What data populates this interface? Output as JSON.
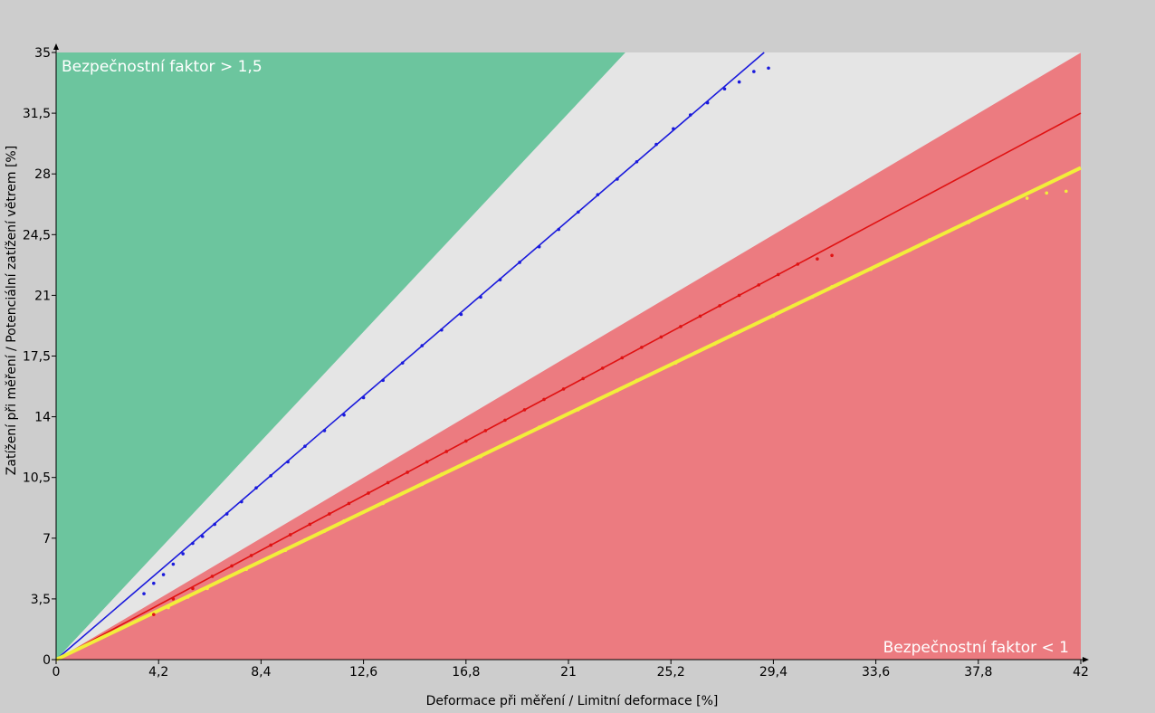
{
  "colors": {
    "background": "#cdcdcd",
    "safe_zone": "#6cc59e",
    "neutral_zone": "#e5e5e5",
    "danger_zone": "#ec7b80",
    "blue_series": "#1a1adc",
    "red_series": "#e01212",
    "yellow_series": "#f2ee3a"
  },
  "chart_data": {
    "type": "scatter",
    "xlabel": "Deformace při měření / Limitní deformace [%]",
    "ylabel": "Zatížení při měření / Potenciální zatížení větrem [%]",
    "xlim": [
      0,
      42
    ],
    "ylim": [
      0,
      35
    ],
    "x_ticks": [
      "0",
      "4,2",
      "8,4",
      "12,6",
      "16,8",
      "21",
      "25,2",
      "29,4",
      "33,6",
      "37,8",
      "42"
    ],
    "y_ticks": [
      "0",
      "3,5",
      "7",
      "10,5",
      "14",
      "17,5",
      "21",
      "24,5",
      "28",
      "31,5",
      "35"
    ],
    "grid": false,
    "zones": [
      {
        "label": "Bezpečnostní faktor > 1,5",
        "boundary_slope": 1.5,
        "position": "top-left"
      },
      {
        "label": "",
        "between_slopes": [
          0.833,
          1.5
        ]
      },
      {
        "label": "Bezpečnostní faktor < 1",
        "boundary_slope": 0.833,
        "position": "bottom-right"
      }
    ],
    "series": [
      {
        "color": "#1a1adc",
        "fit_slope": 1.206,
        "x": [
          3.6,
          4.0,
          4.4,
          4.8,
          5.2,
          5.6,
          6.0,
          6.5,
          7.0,
          7.6,
          8.2,
          8.8,
          9.5,
          10.2,
          11.0,
          11.8,
          12.6,
          13.4,
          14.2,
          15.0,
          15.8,
          16.6,
          17.4,
          18.2,
          19.0,
          19.8,
          20.6,
          21.4,
          22.2,
          23.0,
          23.8,
          24.6,
          25.3,
          26.0,
          26.7,
          27.4,
          28.0,
          28.6,
          29.2
        ],
        "y": [
          3.8,
          4.4,
          4.9,
          5.5,
          6.1,
          6.7,
          7.1,
          7.8,
          8.4,
          9.1,
          9.9,
          10.6,
          11.4,
          12.3,
          13.2,
          14.1,
          15.1,
          16.1,
          17.1,
          18.1,
          19.0,
          19.9,
          20.9,
          21.9,
          22.9,
          23.8,
          24.8,
          25.8,
          26.8,
          27.7,
          28.7,
          29.7,
          30.6,
          31.4,
          32.1,
          32.9,
          33.3,
          33.9,
          34.1
        ]
      },
      {
        "color": "#e01212",
        "fit_slope": 0.75,
        "x": [
          4.0,
          4.8,
          5.6,
          6.4,
          7.2,
          8.0,
          8.8,
          9.6,
          10.4,
          11.2,
          12.0,
          12.8,
          13.6,
          14.4,
          15.2,
          16.0,
          16.8,
          17.6,
          18.4,
          19.2,
          20.0,
          20.8,
          21.6,
          22.4,
          23.2,
          24.0,
          24.8,
          25.6,
          26.4,
          27.2,
          28.0,
          28.8,
          29.6,
          30.4,
          31.2,
          31.8
        ],
        "y": [
          2.6,
          3.5,
          4.1,
          4.8,
          5.4,
          6.0,
          6.6,
          7.2,
          7.8,
          8.4,
          9.0,
          9.6,
          10.2,
          10.8,
          11.4,
          12.0,
          12.6,
          13.2,
          13.8,
          14.4,
          15.0,
          15.6,
          16.2,
          16.8,
          17.4,
          18.0,
          18.6,
          19.2,
          19.8,
          20.4,
          21.0,
          21.6,
          22.2,
          22.8,
          23.1,
          23.3
        ]
      },
      {
        "color": "#f2ee3a",
        "fit_slope": 0.675,
        "x": [
          4.6,
          5.4,
          6.2,
          7.0,
          7.8,
          8.6,
          9.4,
          10.2,
          11.0,
          11.8,
          12.6,
          13.4,
          14.2,
          15.0,
          15.8,
          16.6,
          17.4,
          18.2,
          19.0,
          19.8,
          20.6,
          21.4,
          22.2,
          23.0,
          23.8,
          24.6,
          25.4,
          26.2,
          27.0,
          27.8,
          28.6,
          29.4,
          30.2,
          31.0,
          31.8,
          32.6,
          33.4,
          34.2,
          35.0,
          35.8,
          36.6,
          37.4,
          38.2,
          39.0,
          39.8,
          40.6,
          41.4
        ],
        "y": [
          3.0,
          3.6,
          4.1,
          4.7,
          5.2,
          5.8,
          6.3,
          6.9,
          7.4,
          8.0,
          8.5,
          9.0,
          9.6,
          10.1,
          10.7,
          11.2,
          11.7,
          12.3,
          12.8,
          13.4,
          13.9,
          14.4,
          15.0,
          15.5,
          16.1,
          16.6,
          17.1,
          17.7,
          18.2,
          18.8,
          19.3,
          19.8,
          20.4,
          20.9,
          21.5,
          22.0,
          22.5,
          23.1,
          23.6,
          24.2,
          24.7,
          25.2,
          25.8,
          26.3,
          26.6,
          26.9,
          27.0
        ]
      }
    ]
  }
}
